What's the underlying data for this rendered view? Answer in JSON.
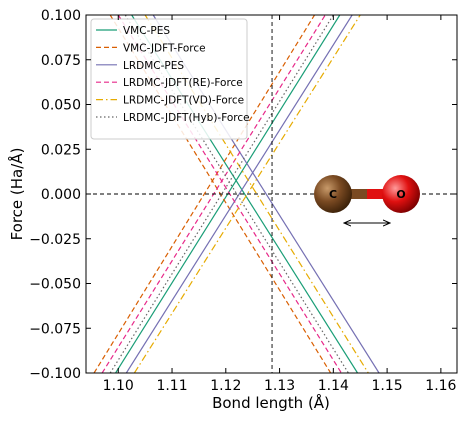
{
  "chart_data": {
    "type": "line",
    "xlabel": "Bond length (Å)",
    "ylabel": "Force (Ha/Å)",
    "xlim": [
      1.094,
      1.163
    ],
    "ylim": [
      -0.1,
      0.1
    ],
    "xticks": [
      1.1,
      1.11,
      1.12,
      1.13,
      1.14,
      1.15,
      1.16
    ],
    "xtick_labels": [
      "1.10",
      "1.11",
      "1.12",
      "1.13",
      "1.14",
      "1.15",
      "1.16"
    ],
    "yticks": [
      -0.1,
      -0.075,
      -0.05,
      -0.025,
      0.0,
      0.025,
      0.05,
      0.075,
      0.1
    ],
    "ytick_labels": [
      "−0.100",
      "−0.075",
      "−0.050",
      "−0.025",
      "0.000",
      "0.025",
      "0.050",
      "0.075",
      "0.100"
    ],
    "vline_x": 1.1286,
    "hline_y": 0.0,
    "legend_position": "top-left",
    "grid": false,
    "series": [
      {
        "name": "VMC-PES",
        "color": "#1a9e77",
        "dash": "solid",
        "rising": {
          "x": [
            1.0995,
            1.1412
          ],
          "y": [
            -0.1,
            0.1
          ]
        },
        "falling": {
          "x": [
            1.1025,
            1.1445
          ],
          "y": [
            0.1,
            -0.1
          ]
        }
      },
      {
        "name": "VMC-JDFT-Force",
        "color": "#d95f02",
        "dash": "dashed",
        "rising": {
          "x": [
            1.0955,
            1.1365
          ],
          "y": [
            -0.1,
            0.1
          ]
        },
        "falling": {
          "x": [
            1.0985,
            1.1395
          ],
          "y": [
            0.1,
            -0.1
          ]
        }
      },
      {
        "name": "LRDMC-PES",
        "color": "#7570b3",
        "dash": "solid",
        "rising": {
          "x": [
            1.1015,
            1.1435
          ],
          "y": [
            -0.1,
            0.1
          ]
        },
        "falling": {
          "x": [
            1.1065,
            1.1485
          ],
          "y": [
            0.1,
            -0.1
          ]
        }
      },
      {
        "name": "LRDMC-JDFT(RE)-Force",
        "color": "#e7298a",
        "dash": "dashed",
        "rising": {
          "x": [
            1.097,
            1.1385
          ],
          "y": [
            -0.1,
            0.1
          ]
        },
        "falling": {
          "x": [
            1.1,
            1.1415
          ],
          "y": [
            0.1,
            -0.1
          ]
        }
      },
      {
        "name": "LRDMC-JDFT(VD)-Force",
        "color": "#e6ab02",
        "dash": "dashdot",
        "rising": {
          "x": [
            1.103,
            1.145
          ],
          "y": [
            -0.1,
            0.1
          ]
        },
        "falling": {
          "x": [
            1.105,
            1.1465
          ],
          "y": [
            0.1,
            -0.1
          ]
        }
      },
      {
        "name": "LRDMC-JDFT(Hyb)-Force",
        "color": "#666666",
        "dash": "dotted",
        "rising": {
          "x": [
            1.0985,
            1.14
          ],
          "y": [
            -0.1,
            0.1
          ]
        },
        "falling": {
          "x": [
            1.1013,
            1.1428
          ],
          "y": [
            0.1,
            -0.1
          ]
        }
      }
    ],
    "inset": {
      "atoms": [
        {
          "label": "C",
          "color": "#7a4a22"
        },
        {
          "label": "O",
          "color": "#e01010"
        }
      ],
      "bond_colors": [
        "#7a4a22",
        "#e01010"
      ]
    }
  }
}
